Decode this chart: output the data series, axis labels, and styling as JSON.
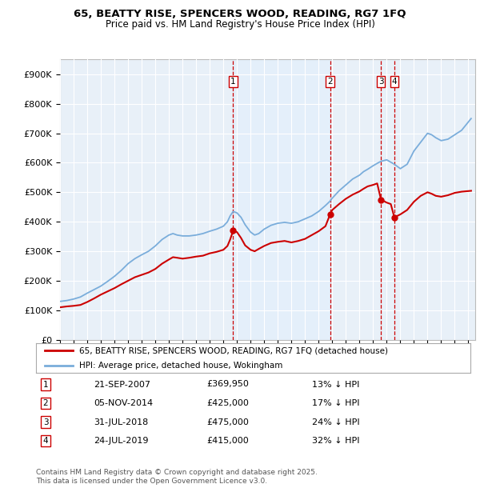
{
  "title": "65, BEATTY RISE, SPENCERS WOOD, READING, RG7 1FQ",
  "subtitle": "Price paid vs. HM Land Registry's House Price Index (HPI)",
  "legend_line1": "65, BEATTY RISE, SPENCERS WOOD, READING, RG7 1FQ (detached house)",
  "legend_line2": "HPI: Average price, detached house, Wokingham",
  "footer_line1": "Contains HM Land Registry data © Crown copyright and database right 2025.",
  "footer_line2": "This data is licensed under the Open Government Licence v3.0.",
  "transactions": [
    {
      "num": 1,
      "date": "21-SEP-2007",
      "price": "£369,950",
      "hpi": "13% ↓ HPI",
      "date_decimal": 2007.72,
      "value": 369950
    },
    {
      "num": 2,
      "date": "05-NOV-2014",
      "price": "£425,000",
      "hpi": "17% ↓ HPI",
      "date_decimal": 2014.84,
      "value": 425000
    },
    {
      "num": 3,
      "date": "31-JUL-2018",
      "price": "£475,000",
      "hpi": "24% ↓ HPI",
      "date_decimal": 2018.58,
      "value": 475000
    },
    {
      "num": 4,
      "date": "24-JUL-2019",
      "price": "£415,000",
      "hpi": "32% ↓ HPI",
      "date_decimal": 2019.56,
      "value": 415000
    }
  ],
  "ylim": [
    0,
    950000
  ],
  "yticks": [
    0,
    100000,
    200000,
    300000,
    400000,
    500000,
    600000,
    700000,
    800000,
    900000
  ],
  "ytick_labels": [
    "£0",
    "£100K",
    "£200K",
    "£300K",
    "£400K",
    "£500K",
    "£600K",
    "£700K",
    "£800K",
    "£900K"
  ],
  "xlim_start": 1995.0,
  "xlim_end": 2025.5,
  "hpi_color": "#7aaddb",
  "price_color": "#cc0000",
  "vline_color": "#cc0000",
  "shade_color": "#ddeeff",
  "bg_plot": "#e8f0f8",
  "bg_fig": "#ffffff",
  "grid_color": "#ffffff"
}
